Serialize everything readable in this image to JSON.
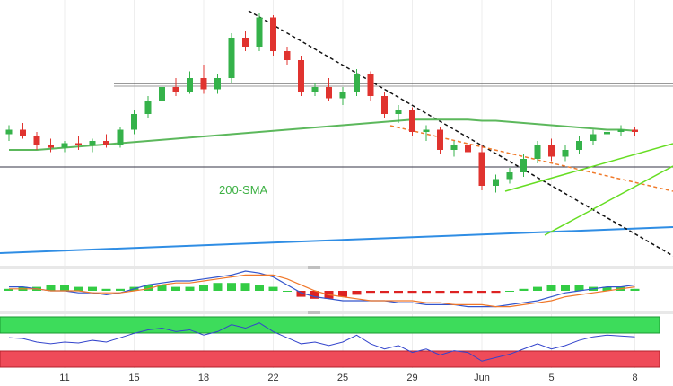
{
  "chart_data": {
    "type": "candlestick",
    "title": "",
    "colors": {
      "up": "#35b24a",
      "down": "#e0332f",
      "sma": "#5cb85c",
      "support": "#2f8de4",
      "trend_down": "#111111",
      "trend_dash": "#f07a2a",
      "channel": "#66dd22",
      "macd": "#3355cc",
      "signal": "#f0782a",
      "rsi": "#3344cc"
    },
    "x_ticks": [
      {
        "label": "11",
        "index": 4
      },
      {
        "label": "15",
        "index": 9
      },
      {
        "label": "18",
        "index": 14
      },
      {
        "label": "22",
        "index": 19
      },
      {
        "label": "25",
        "index": 24
      },
      {
        "label": "29",
        "index": 29
      },
      {
        "label": "Jun",
        "index": 34
      },
      {
        "label": "5",
        "index": 39
      },
      {
        "label": "8",
        "index": 45
      }
    ],
    "price_range": [
      0,
      100
    ],
    "candles": [
      {
        "o": 45,
        "h": 49,
        "l": 42,
        "c": 47
      },
      {
        "o": 47,
        "h": 50,
        "l": 43,
        "c": 44
      },
      {
        "o": 44,
        "h": 46,
        "l": 38,
        "c": 40
      },
      {
        "o": 40,
        "h": 43,
        "l": 37,
        "c": 39
      },
      {
        "o": 39,
        "h": 42,
        "l": 37,
        "c": 41
      },
      {
        "o": 41,
        "h": 44,
        "l": 38,
        "c": 40
      },
      {
        "o": 40,
        "h": 43,
        "l": 37,
        "c": 42
      },
      {
        "o": 42,
        "h": 45,
        "l": 39,
        "c": 40
      },
      {
        "o": 40,
        "h": 48,
        "l": 39,
        "c": 47
      },
      {
        "o": 47,
        "h": 56,
        "l": 45,
        "c": 54
      },
      {
        "o": 54,
        "h": 62,
        "l": 52,
        "c": 60
      },
      {
        "o": 60,
        "h": 68,
        "l": 57,
        "c": 66
      },
      {
        "o": 66,
        "h": 70,
        "l": 62,
        "c": 64
      },
      {
        "o": 64,
        "h": 73,
        "l": 63,
        "c": 70
      },
      {
        "o": 70,
        "h": 76,
        "l": 63,
        "c": 65
      },
      {
        "o": 65,
        "h": 72,
        "l": 63,
        "c": 70
      },
      {
        "o": 70,
        "h": 90,
        "l": 68,
        "c": 88
      },
      {
        "o": 88,
        "h": 91,
        "l": 82,
        "c": 84
      },
      {
        "o": 84,
        "h": 99,
        "l": 82,
        "c": 97
      },
      {
        "o": 97,
        "h": 98,
        "l": 80,
        "c": 82
      },
      {
        "o": 82,
        "h": 84,
        "l": 76,
        "c": 78
      },
      {
        "o": 78,
        "h": 80,
        "l": 62,
        "c": 64
      },
      {
        "o": 64,
        "h": 68,
        "l": 62,
        "c": 66
      },
      {
        "o": 66,
        "h": 70,
        "l": 60,
        "c": 61
      },
      {
        "o": 61,
        "h": 66,
        "l": 58,
        "c": 64
      },
      {
        "o": 64,
        "h": 74,
        "l": 62,
        "c": 72
      },
      {
        "o": 72,
        "h": 73,
        "l": 60,
        "c": 62
      },
      {
        "o": 62,
        "h": 64,
        "l": 52,
        "c": 54
      },
      {
        "o": 54,
        "h": 58,
        "l": 50,
        "c": 56
      },
      {
        "o": 56,
        "h": 57,
        "l": 44,
        "c": 46
      },
      {
        "o": 46,
        "h": 49,
        "l": 42,
        "c": 47
      },
      {
        "o": 47,
        "h": 48,
        "l": 36,
        "c": 38
      },
      {
        "o": 38,
        "h": 42,
        "l": 35,
        "c": 40
      },
      {
        "o": 40,
        "h": 47,
        "l": 36,
        "c": 37
      },
      {
        "o": 37,
        "h": 40,
        "l": 20,
        "c": 22
      },
      {
        "o": 22,
        "h": 27,
        "l": 19,
        "c": 25
      },
      {
        "o": 25,
        "h": 30,
        "l": 23,
        "c": 28
      },
      {
        "o": 28,
        "h": 36,
        "l": 26,
        "c": 34
      },
      {
        "o": 34,
        "h": 42,
        "l": 32,
        "c": 40
      },
      {
        "o": 40,
        "h": 43,
        "l": 33,
        "c": 35
      },
      {
        "o": 35,
        "h": 40,
        "l": 33,
        "c": 38
      },
      {
        "o": 38,
        "h": 44,
        "l": 36,
        "c": 42
      },
      {
        "o": 42,
        "h": 47,
        "l": 40,
        "c": 45
      },
      {
        "o": 45,
        "h": 48,
        "l": 43,
        "c": 46
      },
      {
        "o": 46,
        "h": 49,
        "l": 44,
        "c": 47
      },
      {
        "o": 47,
        "h": 48,
        "l": 44,
        "c": 46
      }
    ],
    "sma_200": {
      "label": "200-SMA",
      "values": [
        38,
        38,
        38,
        38.5,
        39,
        39.5,
        40,
        40.5,
        41,
        41.5,
        42,
        42.5,
        43,
        43.5,
        44,
        44.5,
        45,
        45.5,
        46,
        46.5,
        47,
        47.5,
        48,
        48.5,
        49,
        49.5,
        50,
        50.5,
        51,
        51.5,
        51.5,
        51.5,
        51.5,
        51.5,
        51,
        51,
        50.5,
        50,
        49.5,
        49,
        48.5,
        48,
        47.5,
        47,
        47,
        46.5
      ]
    },
    "macd": {
      "histogram": [
        1,
        2,
        2,
        3,
        3,
        2,
        2,
        1,
        1,
        2,
        3,
        3,
        2,
        2,
        3,
        4,
        4,
        4,
        3,
        2,
        0,
        -3,
        -4,
        -4,
        -3,
        -2,
        -1,
        -1,
        -1,
        -1,
        -1,
        -1,
        -1,
        -1,
        -1,
        -1,
        0,
        1,
        2,
        3,
        3,
        3,
        2,
        2,
        2,
        1
      ],
      "macd": [
        2,
        2,
        1,
        0,
        0,
        -1,
        -1,
        -2,
        -1,
        1,
        3,
        4,
        5,
        5,
        6,
        7,
        8,
        10,
        9,
        7,
        3,
        -1,
        -3,
        -4,
        -5,
        -5,
        -5,
        -5,
        -6,
        -6,
        -7,
        -7,
        -7,
        -8,
        -8,
        -8,
        -7,
        -6,
        -5,
        -3,
        -1,
        0,
        1,
        2,
        2,
        3
      ],
      "signal": [
        1,
        1,
        1,
        0,
        0,
        0,
        -1,
        -1,
        -1,
        0,
        1,
        3,
        4,
        4,
        5,
        6,
        7,
        8,
        8,
        8,
        6,
        3,
        0,
        -2,
        -3,
        -4,
        -5,
        -5,
        -5,
        -5,
        -6,
        -6,
        -7,
        -7,
        -7,
        -8,
        -8,
        -7,
        -6,
        -5,
        -3,
        -2,
        -1,
        0,
        1,
        2
      ]
    },
    "rsi": {
      "values": [
        55,
        54,
        50,
        48,
        50,
        49,
        52,
        50,
        55,
        60,
        64,
        66,
        62,
        64,
        58,
        62,
        70,
        66,
        72,
        62,
        55,
        48,
        50,
        46,
        50,
        58,
        48,
        42,
        46,
        38,
        42,
        35,
        40,
        38,
        28,
        32,
        36,
        42,
        48,
        42,
        46,
        52,
        56,
        58,
        57,
        56
      ]
    }
  }
}
